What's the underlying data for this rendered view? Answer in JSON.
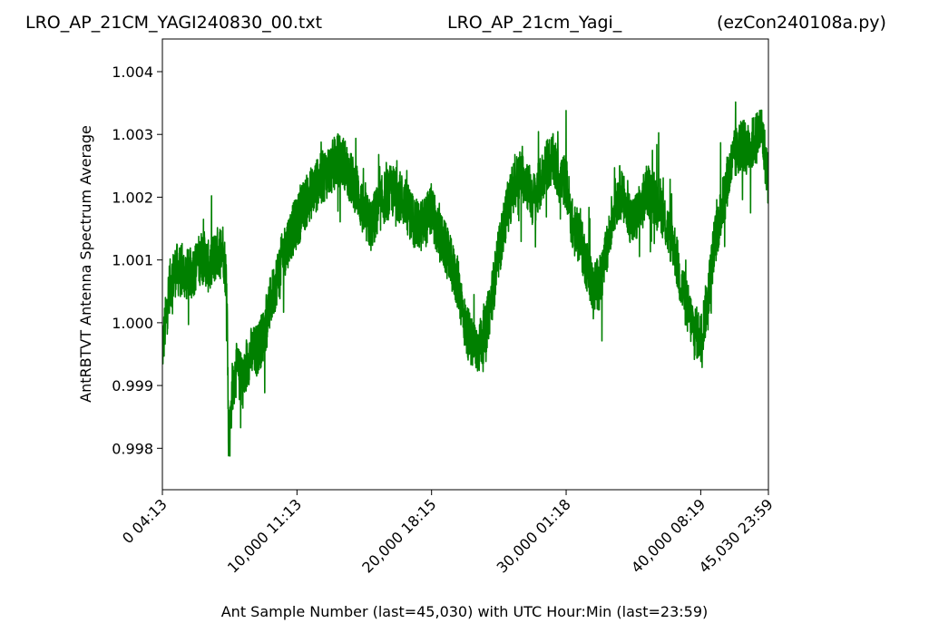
{
  "header": {
    "file_name": "LRO_AP_21CM_YAGI240830_00.txt",
    "study_name": "LRO_AP_21cm_Yagi_",
    "program_name": "(ezCon240108a.py)"
  },
  "chart_data": {
    "type": "line",
    "xlabel": "Ant Sample Number (last=45,030) with UTC Hour:Min (last=23:59)",
    "ylabel": "AntRBTVT Antenna Spectrum Average",
    "xlim": [
      0,
      45030
    ],
    "ylim": [
      0.99734,
      1.00452
    ],
    "x_ticks": [
      {
        "value": 0,
        "label": "0  04:13"
      },
      {
        "value": 10000,
        "label": "10,000  11:13"
      },
      {
        "value": 20000,
        "label": "20,000  18:15"
      },
      {
        "value": 30000,
        "label": "30,000  01:18"
      },
      {
        "value": 40000,
        "label": "40,000  08:19"
      },
      {
        "value": 45030,
        "label": "45,030  23:59"
      }
    ],
    "y_ticks": [
      {
        "value": 0.998,
        "label": "0.998"
      },
      {
        "value": 0.999,
        "label": "0.999"
      },
      {
        "value": 1.0,
        "label": "1.000"
      },
      {
        "value": 1.001,
        "label": "1.001"
      },
      {
        "value": 1.002,
        "label": "1.002"
      },
      {
        "value": 1.003,
        "label": "1.003"
      },
      {
        "value": 1.004,
        "label": "1.004"
      }
    ],
    "grid": false,
    "series": [
      {
        "color": "#008000",
        "x": [
          0,
          500,
          1000,
          1500,
          2000,
          2500,
          3000,
          3500,
          4000,
          4500,
          4800,
          4900,
          5000,
          5200,
          5500,
          6000,
          6500,
          7000,
          7500,
          8000,
          8500,
          9000,
          9500,
          10000,
          10500,
          11000,
          11500,
          12000,
          12500,
          13000,
          13500,
          14000,
          14500,
          15000,
          15500,
          16000,
          16500,
          17000,
          17500,
          18000,
          18500,
          19000,
          19500,
          20000,
          20500,
          21000,
          21500,
          22000,
          22500,
          23000,
          23500,
          24000,
          24500,
          25000,
          25500,
          26000,
          26500,
          27000,
          27500,
          28000,
          28500,
          29000,
          29500,
          30000,
          30500,
          31000,
          31500,
          32000,
          32500,
          33000,
          33500,
          34000,
          34500,
          35000,
          35500,
          36000,
          36500,
          37000,
          37500,
          38000,
          38500,
          39000,
          39500,
          40000,
          40500,
          41000,
          41500,
          42000,
          42500,
          43000,
          43500,
          44000,
          44500,
          45030
        ],
        "values": [
          0.99955,
          1.00055,
          1.00085,
          1.0008,
          1.00075,
          1.0009,
          1.0011,
          1.00085,
          1.0011,
          1.0012,
          1.0006,
          0.9983,
          0.9982,
          0.999,
          0.99925,
          0.99905,
          0.9995,
          0.99955,
          0.9998,
          1.0003,
          1.0007,
          1.0011,
          1.0014,
          1.0016,
          1.00185,
          1.00205,
          1.0022,
          1.00235,
          1.00245,
          1.0026,
          1.00255,
          1.0023,
          1.0021,
          1.0017,
          1.00155,
          1.0018,
          1.002,
          1.0021,
          1.00205,
          1.0019,
          1.0017,
          1.0015,
          1.0016,
          1.0018,
          1.0014,
          1.0012,
          1.0009,
          1.0006,
          0.99995,
          0.99965,
          0.9996,
          0.99985,
          1.00045,
          1.0011,
          1.0017,
          1.0021,
          1.00235,
          1.0023,
          1.00195,
          1.00215,
          1.0025,
          1.0026,
          1.0023,
          1.00225,
          1.0015,
          1.00135,
          1.00095,
          1.00055,
          1.00065,
          1.0011,
          1.0018,
          1.0021,
          1.0018,
          1.0016,
          1.0018,
          1.0021,
          1.002,
          1.0019,
          1.0015,
          1.00125,
          1.00065,
          1.00025,
          0.9999,
          0.99975,
          1.00035,
          1.00125,
          1.00175,
          1.0023,
          1.00265,
          1.00285,
          1.00275,
          1.0029,
          1.0031,
          1.00225
        ]
      }
    ]
  }
}
